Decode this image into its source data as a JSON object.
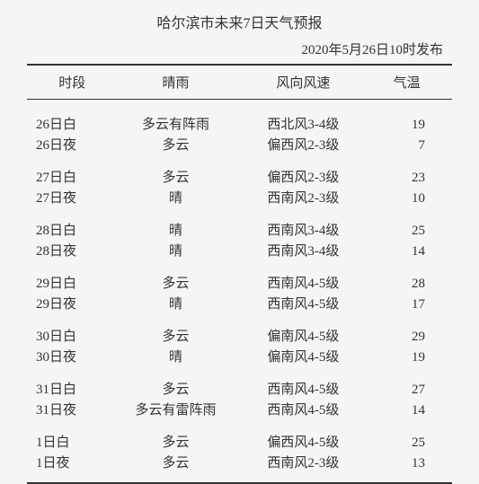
{
  "title": "哈尔滨市未来7日天气预报",
  "publish": "2020年5月26日10时发布",
  "headers": {
    "period": "时段",
    "weather": "晴雨",
    "wind": "风向风速",
    "temp": "气温"
  },
  "rows": [
    {
      "period": "26日白",
      "weather": "多云有阵雨",
      "wind": "西北风3-4级",
      "temp": "19",
      "group_start": true,
      "first": true
    },
    {
      "period": "26日夜",
      "weather": "多云",
      "wind": "偏西风2-3级",
      "temp": "7"
    },
    {
      "period": "27日白",
      "weather": "多云",
      "wind": "偏西风2-3级",
      "temp": "23",
      "group_start": true
    },
    {
      "period": "27日夜",
      "weather": "晴",
      "wind": "西南风2-3级",
      "temp": "10"
    },
    {
      "period": "28日白",
      "weather": "晴",
      "wind": "西南风3-4级",
      "temp": "25",
      "group_start": true
    },
    {
      "period": "28日夜",
      "weather": "晴",
      "wind": "西南风3-4级",
      "temp": "14"
    },
    {
      "period": "29日白",
      "weather": "多云",
      "wind": "西南风4-5级",
      "temp": "28",
      "group_start": true
    },
    {
      "period": "29日夜",
      "weather": "晴",
      "wind": "西南风4-5级",
      "temp": "17"
    },
    {
      "period": "30日白",
      "weather": "多云",
      "wind": "偏南风4-5级",
      "temp": "29",
      "group_start": true
    },
    {
      "period": "30日夜",
      "weather": "晴",
      "wind": "偏南风4-5级",
      "temp": "19"
    },
    {
      "period": "31日白",
      "weather": "多云",
      "wind": "西南风4-5级",
      "temp": "27",
      "group_start": true
    },
    {
      "period": "31日夜",
      "weather": "多云有雷阵雨",
      "wind": "西南风4-5级",
      "temp": "14"
    },
    {
      "period": "1日白",
      "weather": "多云",
      "wind": "偏西风4-5级",
      "temp": "25",
      "group_start": true
    },
    {
      "period": "1日夜",
      "weather": "多云",
      "wind": "西南风2-3级",
      "temp": "13",
      "last": true
    }
  ]
}
